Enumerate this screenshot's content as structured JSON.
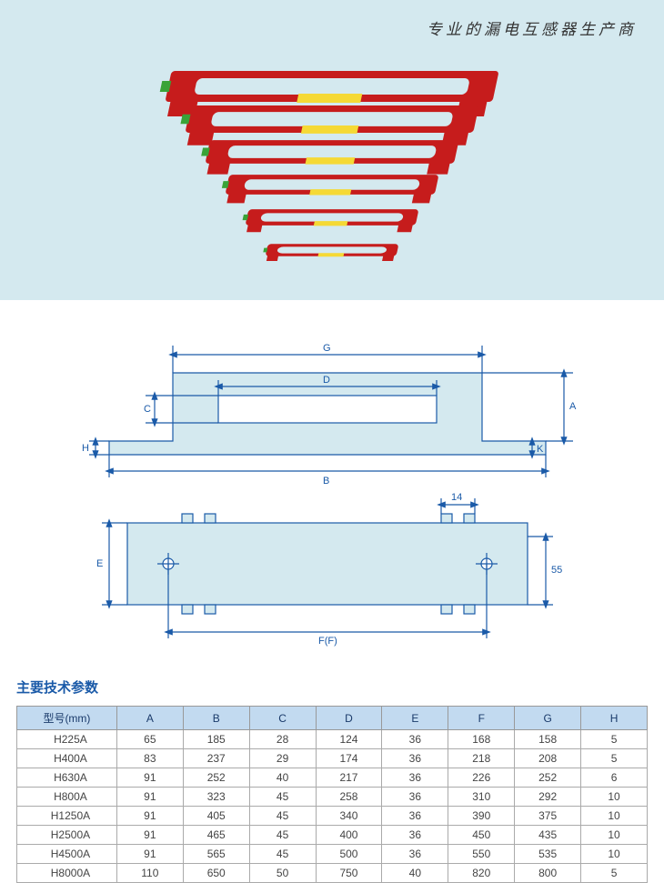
{
  "header": {
    "tagline": "专业的漏电互感器生产商"
  },
  "diagram": {
    "labels": {
      "A": "A",
      "B": "B",
      "C": "C",
      "D": "D",
      "E": "E",
      "F": "F(F)",
      "G": "G",
      "H": "H",
      "K": "K",
      "dim14": "14",
      "dim55": "55"
    },
    "stroke_color": "#1a5aa8",
    "fill_color": "#d4e9ef",
    "text_color": "#1a5aa8",
    "fontsize": 11
  },
  "product": {
    "body_color": "#c61c1c",
    "label_color": "#f5d935",
    "terminal_color": "#3aa338",
    "count": 6
  },
  "params": {
    "title": "主要技术参数",
    "columns": [
      "型号(mm)",
      "A",
      "B",
      "C",
      "D",
      "E",
      "F",
      "G",
      "H"
    ],
    "rows": [
      [
        "H225A",
        "65",
        "185",
        "28",
        "124",
        "36",
        "168",
        "158",
        "5"
      ],
      [
        "H400A",
        "83",
        "237",
        "29",
        "174",
        "36",
        "218",
        "208",
        "5"
      ],
      [
        "H630A",
        "91",
        "252",
        "40",
        "217",
        "36",
        "226",
        "252",
        "6"
      ],
      [
        "H800A",
        "91",
        "323",
        "45",
        "258",
        "36",
        "310",
        "292",
        "10"
      ],
      [
        "H1250A",
        "91",
        "405",
        "45",
        "340",
        "36",
        "390",
        "375",
        "10"
      ],
      [
        "H2500A",
        "91",
        "465",
        "45",
        "400",
        "36",
        "450",
        "435",
        "10"
      ],
      [
        "H4500A",
        "91",
        "565",
        "45",
        "500",
        "36",
        "550",
        "535",
        "10"
      ],
      [
        "H8000A",
        "110",
        "650",
        "50",
        "750",
        "40",
        "820",
        "800",
        "5"
      ]
    ],
    "header_bg": "#c2daf0",
    "header_text_color": "#1a3a6a",
    "border_color": "#999999",
    "cell_text_color": "#444444",
    "fontsize": 12
  }
}
